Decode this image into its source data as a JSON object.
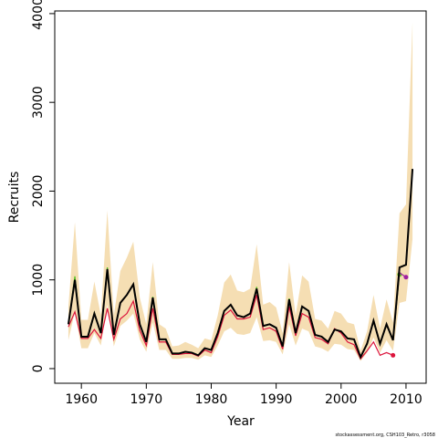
{
  "chart_data": {
    "type": "line",
    "x_label": "Year",
    "y_label": "Recruits",
    "footer": "stockassessment.org, CSH103_Retro, r3058",
    "x": [
      1958,
      1959,
      1960,
      1961,
      1962,
      1963,
      1964,
      1965,
      1966,
      1967,
      1968,
      1969,
      1970,
      1971,
      1972,
      1973,
      1974,
      1975,
      1976,
      1977,
      1978,
      1979,
      1980,
      1981,
      1982,
      1983,
      1984,
      1985,
      1986,
      1987,
      1988,
      1989,
      1990,
      1991,
      1992,
      1993,
      1994,
      1995,
      1996,
      1997,
      1998,
      1999,
      2000,
      2001,
      2002,
      2003,
      2004,
      2005,
      2006,
      2007,
      2008,
      2009,
      2010,
      2011
    ],
    "band": {
      "color": "#f5deb3",
      "upper": [
        700,
        1650,
        550,
        550,
        980,
        600,
        1780,
        600,
        1100,
        1250,
        1430,
        800,
        500,
        1200,
        500,
        450,
        250,
        260,
        300,
        270,
        230,
        340,
        320,
        600,
        970,
        1060,
        880,
        860,
        900,
        1400,
        720,
        750,
        690,
        400,
        1200,
        600,
        1050,
        980,
        560,
        540,
        450,
        650,
        620,
        520,
        500,
        200,
        420,
        830,
        450,
        780,
        520,
        1750,
        1850,
        3900
      ],
      "lower": [
        320,
        640,
        230,
        230,
        400,
        260,
        720,
        250,
        480,
        540,
        620,
        330,
        190,
        520,
        210,
        210,
        110,
        110,
        120,
        120,
        100,
        150,
        130,
        260,
        420,
        460,
        390,
        380,
        400,
        580,
        310,
        320,
        300,
        160,
        500,
        260,
        450,
        420,
        250,
        230,
        190,
        280,
        270,
        220,
        210,
        85,
        180,
        350,
        180,
        320,
        200,
        740,
        760,
        1460
      ]
    },
    "series": [
      {
        "color": "#dc143c",
        "values": [
          470,
          640,
          340,
          340,
          440,
          340,
          680,
          330,
          560,
          620,
          760,
          430,
          260,
          680,
          300,
          300,
          160,
          160,
          170,
          170,
          140,
          210,
          180,
          360,
          600,
          660,
          560,
          560,
          580,
          830,
          440,
          460,
          420,
          220,
          700,
          370,
          620,
          580,
          350,
          330,
          280,
          450,
          400,
          300,
          270,
          110,
          200,
          300,
          150,
          180,
          150,
          null,
          null,
          null
        ]
      },
      {
        "color": "#55c020",
        "values": [
          500,
          1040,
          360,
          360,
          630,
          400,
          1140,
          380,
          740,
          830,
          950,
          500,
          300,
          810,
          330,
          330,
          170,
          170,
          190,
          180,
          150,
          230,
          210,
          400,
          650,
          720,
          600,
          580,
          620,
          920,
          480,
          500,
          460,
          250,
          790,
          400,
          700,
          650,
          380,
          360,
          300,
          440,
          420,
          340,
          330,
          130,
          280,
          540,
          280,
          500,
          320,
          1060,
          null,
          null
        ]
      },
      {
        "color": "#a020a0",
        "values": [
          500,
          1000,
          360,
          360,
          620,
          400,
          1120,
          380,
          740,
          830,
          950,
          500,
          300,
          800,
          330,
          330,
          170,
          170,
          190,
          180,
          150,
          230,
          210,
          400,
          650,
          720,
          600,
          580,
          620,
          900,
          480,
          500,
          460,
          250,
          780,
          400,
          700,
          650,
          380,
          360,
          300,
          440,
          420,
          340,
          330,
          130,
          280,
          540,
          280,
          500,
          320,
          1080,
          1030,
          null
        ]
      },
      {
        "color": "#000000",
        "values": [
          500,
          1000,
          360,
          360,
          620,
          400,
          1120,
          380,
          740,
          830,
          950,
          500,
          300,
          800,
          330,
          330,
          170,
          170,
          190,
          180,
          150,
          230,
          210,
          400,
          650,
          720,
          600,
          580,
          620,
          900,
          480,
          500,
          460,
          250,
          780,
          400,
          700,
          650,
          380,
          360,
          300,
          440,
          420,
          340,
          330,
          130,
          280,
          540,
          280,
          500,
          320,
          1140,
          1170,
          2250
        ]
      }
    ],
    "xlim": [
      1955.9,
      2013.1
    ],
    "xticks": [
      1960,
      1970,
      1980,
      1990,
      2000,
      2010
    ],
    "ylim": [
      -165,
      4030
    ],
    "yticks": [
      0,
      1000,
      2000,
      3000,
      4000
    ]
  }
}
